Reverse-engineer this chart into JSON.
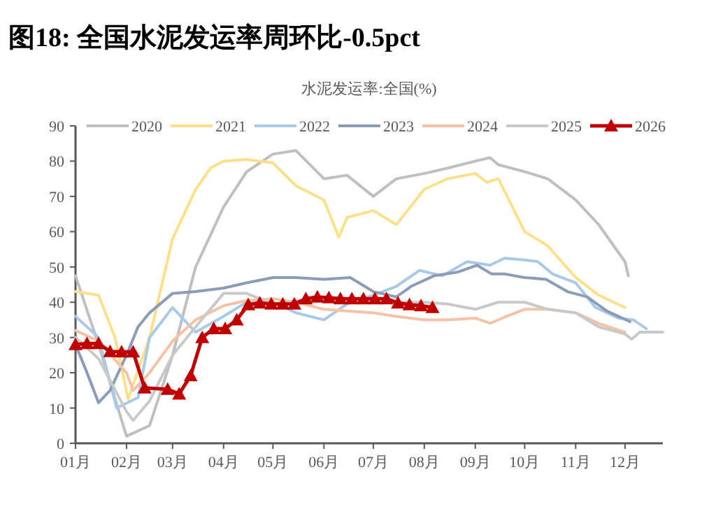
{
  "chart_data": {
    "type": "line",
    "title": "图18:  全国水泥发运率周环比-0.5pct",
    "subtitle": "水泥发运率:全国(%)",
    "xlim": [
      "--01-01",
      "--12-24"
    ],
    "xticks": [
      {
        "value": "--01-01",
        "label": "01月"
      },
      {
        "value": "--02-01",
        "label": "02月"
      },
      {
        "value": "--03-01",
        "label": "03月"
      },
      {
        "value": "--04-01",
        "label": "04月"
      },
      {
        "value": "--05-01",
        "label": "05月"
      },
      {
        "value": "--06-01",
        "label": "06月"
      },
      {
        "value": "--07-01",
        "label": "07月"
      },
      {
        "value": "--08-01",
        "label": "08月"
      },
      {
        "value": "--09-01",
        "label": "09月"
      },
      {
        "value": "--10-01",
        "label": "10月"
      },
      {
        "value": "--11-01",
        "label": "11月"
      },
      {
        "value": "--12-01",
        "label": "12月"
      }
    ],
    "ylim": [
      0,
      90
    ],
    "yticks": [
      0,
      10,
      20,
      30,
      40,
      50,
      60,
      70,
      80,
      90
    ],
    "grid": false,
    "legend": "top",
    "line_style": "solid",
    "series": [
      {
        "name": "2020",
        "color": "#bfbfbf",
        "marker": "none",
        "x": [
          "--01-01",
          "--01-15",
          "--02-01",
          "--02-15",
          "--03-01",
          "--03-15",
          "--04-01",
          "--04-15",
          "--05-01",
          "--05-15",
          "--06-01",
          "--06-15",
          "--07-01",
          "--07-15",
          "--08-01",
          "--08-15",
          "--09-01",
          "--09-10",
          "--09-15",
          "--10-01",
          "--10-15",
          "--11-01",
          "--11-15",
          "--12-01",
          "--12-03"
        ],
        "values": [
          47.5,
          28,
          2,
          5,
          25,
          50,
          67,
          77,
          82,
          83,
          75,
          76,
          70,
          75,
          76.5,
          78,
          80,
          81,
          79,
          77,
          75,
          69,
          62,
          51.5,
          47.5
        ]
      },
      {
        "name": "2021",
        "color": "#ffe08a",
        "marker": "none",
        "x": [
          "--01-01",
          "--01-15",
          "--01-25",
          "--02-02",
          "--02-15",
          "--03-01",
          "--03-15",
          "--03-24",
          "--04-01",
          "--04-15",
          "--05-01",
          "--05-15",
          "--06-01",
          "--06-10",
          "--06-15",
          "--07-01",
          "--07-15",
          "--08-01",
          "--08-15",
          "--09-01",
          "--09-08",
          "--09-15",
          "--10-01",
          "--10-15",
          "--11-01",
          "--11-15",
          "--12-01"
        ],
        "values": [
          43,
          42,
          30,
          12.5,
          30,
          58,
          72,
          78,
          80,
          80.5,
          79.5,
          73,
          69,
          58.5,
          64,
          66,
          62,
          72,
          75,
          76.5,
          74,
          75,
          60,
          56,
          47,
          42,
          38.5
        ]
      },
      {
        "name": "2022",
        "color": "#a9c9e8",
        "marker": "none",
        "x": [
          "--01-01",
          "--01-15",
          "--01-26",
          "--02-08",
          "--02-15",
          "--03-01",
          "--03-15",
          "--04-01",
          "--04-15",
          "--05-01",
          "--05-15",
          "--06-01",
          "--06-15",
          "--07-01",
          "--07-15",
          "--07-29",
          "--08-12",
          "--08-27",
          "--09-10",
          "--09-19",
          "--10-01",
          "--10-09",
          "--10-18",
          "--11-01",
          "--11-13",
          "--11-27",
          "--12-06",
          "--12-14"
        ],
        "values": [
          36,
          30,
          10,
          13,
          30,
          38.5,
          31.5,
          36,
          40,
          40,
          37,
          35,
          39.5,
          42,
          44.5,
          49,
          47.5,
          51.5,
          50.5,
          52.5,
          52,
          51.5,
          48,
          45.5,
          38.5,
          35.5,
          35,
          32.5
        ]
      },
      {
        "name": "2023",
        "color": "#8c9cb8",
        "marker": "none",
        "x": [
          "--01-01",
          "--01-08",
          "--01-15",
          "--01-22",
          "--02-01",
          "--02-08",
          "--02-15",
          "--03-01",
          "--03-15",
          "--04-01",
          "--04-15",
          "--05-01",
          "--05-15",
          "--06-01",
          "--06-17",
          "--07-01",
          "--07-15",
          "--07-24",
          "--08-07",
          "--08-21",
          "--09-02",
          "--09-11",
          "--09-19",
          "--10-01",
          "--10-14",
          "--10-27",
          "--11-08",
          "--11-20",
          "--12-04"
        ],
        "values": [
          28,
          20,
          11.5,
          15,
          25,
          33,
          37,
          42.5,
          43,
          44,
          45.5,
          47,
          47,
          46.5,
          47,
          43,
          41.5,
          44.5,
          47.5,
          48.5,
          50.5,
          48,
          48,
          47,
          46.5,
          43,
          41.5,
          37.5,
          34.5
        ]
      },
      {
        "name": "2024",
        "color": "#f4c3a5",
        "marker": "none",
        "x": [
          "--01-01",
          "--01-15",
          "--02-01",
          "--02-05",
          "--02-15",
          "--03-01",
          "--03-15",
          "--04-01",
          "--04-15",
          "--05-01",
          "--05-15",
          "--06-01",
          "--06-15",
          "--07-01",
          "--07-15",
          "--08-01",
          "--08-15",
          "--09-01",
          "--09-10",
          "--09-20",
          "--10-01",
          "--10-15",
          "--11-01",
          "--11-15",
          "--12-01"
        ],
        "values": [
          32,
          29,
          20,
          15,
          20,
          29,
          35,
          39,
          40.5,
          41,
          40,
          38,
          37.5,
          37,
          36,
          35,
          35,
          35.5,
          34,
          36,
          38,
          38,
          37,
          34,
          31.5
        ]
      },
      {
        "name": "2025",
        "color": "#c9c9c9",
        "marker": "none",
        "x": [
          "--01-01",
          "--01-15",
          "--02-01",
          "--02-05",
          "--02-15",
          "--03-01",
          "--03-15",
          "--04-01",
          "--04-15",
          "--05-01",
          "--05-15",
          "--06-01",
          "--06-15",
          "--07-01",
          "--07-15",
          "--08-01",
          "--08-15",
          "--09-01",
          "--09-15",
          "--10-01",
          "--10-15",
          "--11-01",
          "--11-15",
          "--12-01",
          "--12-05",
          "--12-10",
          "--12-24"
        ],
        "values": [
          30,
          24,
          9,
          6.5,
          12,
          25,
          33,
          42.5,
          42.5,
          39.5,
          40.5,
          40.5,
          40,
          40,
          40,
          40,
          39.5,
          38,
          40,
          40,
          38,
          37,
          33,
          31,
          29.5,
          31.5,
          31.5
        ]
      },
      {
        "name": "2026",
        "color": "#c00000",
        "marker": "triangle",
        "x": [
          "--01-01",
          "--01-08",
          "--01-15",
          "--01-22",
          "--01-29",
          "--02-05",
          "--02-12",
          "--02-26",
          "--03-05",
          "--03-12",
          "--03-19",
          "--03-26",
          "--04-02",
          "--04-09",
          "--04-16",
          "--04-23",
          "--04-30",
          "--05-07",
          "--05-14",
          "--05-21",
          "--05-28",
          "--06-04",
          "--06-11",
          "--06-18",
          "--06-25",
          "--07-02",
          "--07-09",
          "--07-16",
          "--07-23",
          "--07-30",
          "--08-06"
        ],
        "values": [
          28,
          28.3,
          28.3,
          26,
          25.9,
          25.9,
          15.7,
          15.3,
          14,
          19.2,
          30,
          32.5,
          32.5,
          35,
          39.3,
          39.8,
          39.5,
          39.5,
          39.5,
          41,
          41.5,
          41.3,
          41,
          41,
          41,
          41,
          41,
          39.8,
          39.3,
          39,
          38.5
        ]
      }
    ]
  }
}
